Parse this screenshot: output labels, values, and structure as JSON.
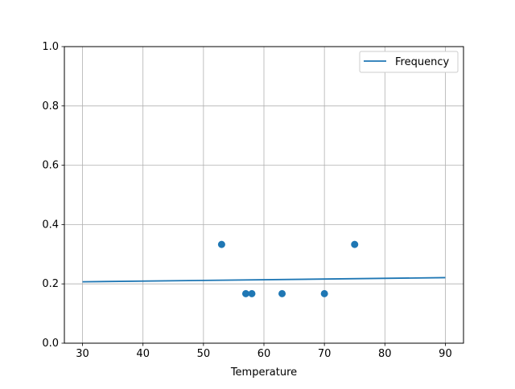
{
  "chart_data": {
    "type": "scatter",
    "title": "",
    "xlabel": "Temperature",
    "ylabel": "",
    "xlim": [
      27,
      93
    ],
    "ylim": [
      0,
      1
    ],
    "xticks": [
      "30",
      "40",
      "50",
      "60",
      "70",
      "80",
      "90"
    ],
    "yticks": [
      "0.0",
      "0.2",
      "0.4",
      "0.6",
      "0.8",
      "1.0"
    ],
    "grid": true,
    "legend": {
      "placement": "top-right",
      "entries": [
        "Frequency"
      ]
    },
    "color": "#1f77b4",
    "series": [
      {
        "name": "Frequency",
        "type": "line",
        "x": [
          30,
          90
        ],
        "y": [
          0.207,
          0.221
        ]
      },
      {
        "type": "scatter",
        "x": [
          53,
          57,
          58,
          63,
          70,
          75
        ],
        "y": [
          0.333,
          0.167,
          0.167,
          0.167,
          0.167,
          0.333
        ]
      }
    ]
  }
}
